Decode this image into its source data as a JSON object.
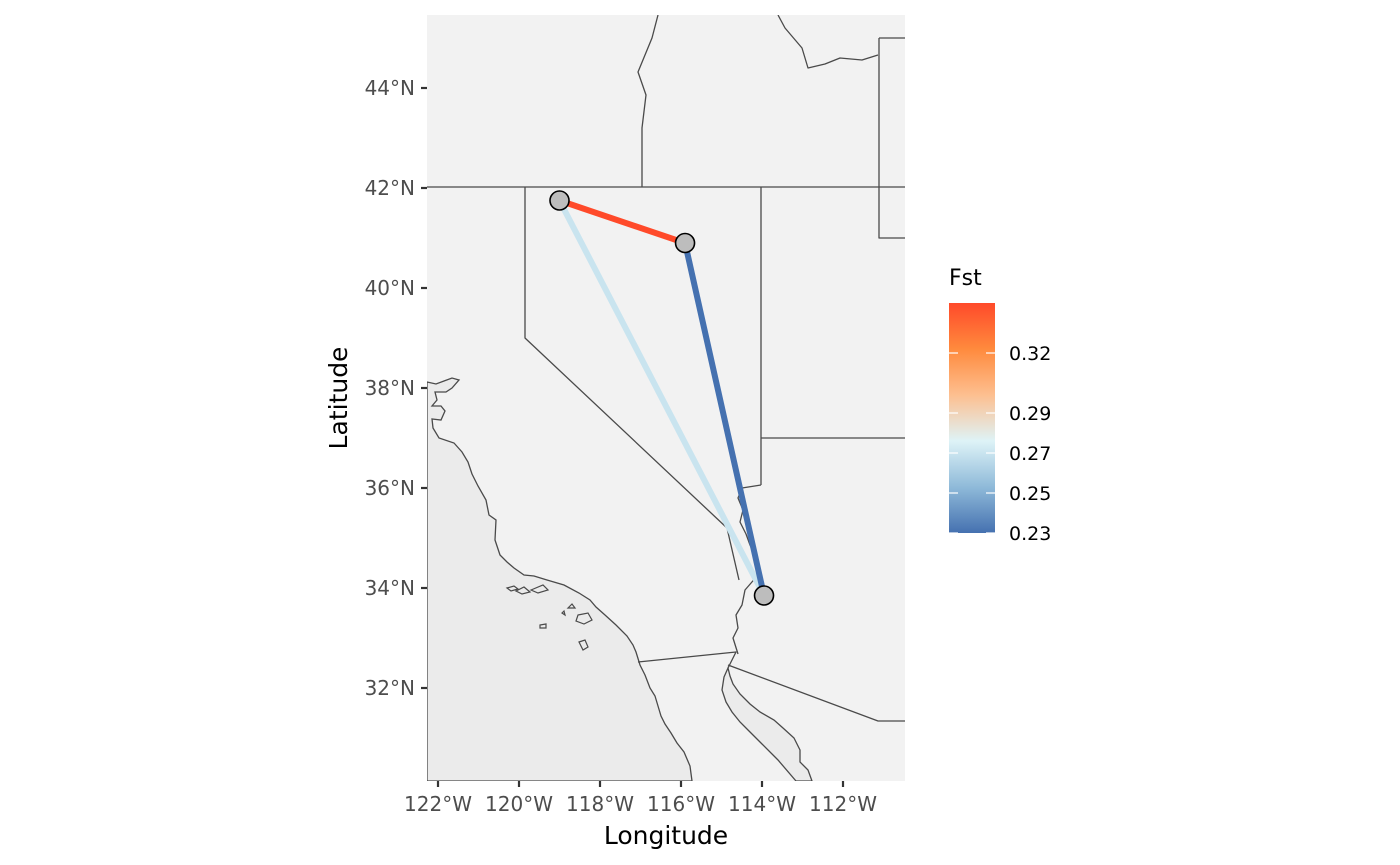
{
  "chart_data": {
    "type": "map",
    "xlabel": "Longitude",
    "ylabel": "Latitude",
    "xlim": [
      -122.6,
      -110.5
    ],
    "ylim": [
      30.2,
      45.5
    ],
    "x_ticks": [
      {
        "value": -122,
        "label": "122°W"
      },
      {
        "value": -120,
        "label": "120°W"
      },
      {
        "value": -118,
        "label": "118°W"
      },
      {
        "value": -116,
        "label": "116°W"
      },
      {
        "value": -114,
        "label": "114°W"
      },
      {
        "value": -112,
        "label": "112°W"
      }
    ],
    "y_ticks": [
      {
        "value": 32,
        "label": "32°N"
      },
      {
        "value": 34,
        "label": "34°N"
      },
      {
        "value": 36,
        "label": "36°N"
      },
      {
        "value": 38,
        "label": "38°N"
      },
      {
        "value": 40,
        "label": "40°N"
      },
      {
        "value": 42,
        "label": "42°N"
      },
      {
        "value": 44,
        "label": "44°N"
      }
    ],
    "sites": [
      {
        "lon": -119.0,
        "lat": 41.75
      },
      {
        "lon": -115.9,
        "lat": 40.9
      },
      {
        "lon": -113.95,
        "lat": 33.85
      }
    ],
    "edges": [
      {
        "from": 0,
        "to": 1,
        "fst": 0.345
      },
      {
        "from": 0,
        "to": 2,
        "fst": 0.27
      },
      {
        "from": 1,
        "to": 2,
        "fst": 0.23
      }
    ],
    "legend": {
      "title": "Fst",
      "min": 0.23,
      "max: ": null,
      "max": 0.345,
      "breaks": [
        {
          "value": 0.23,
          "label": "0.23"
        },
        {
          "value": 0.25,
          "label": "0.25"
        },
        {
          "value": 0.27,
          "label": "0.27"
        },
        {
          "value": 0.29,
          "label": "0.29"
        },
        {
          "value": 0.32,
          "label": "0.32"
        }
      ],
      "colors": [
        "#4571b0",
        "#8fbad9",
        "#def3f7",
        "#fdbf90",
        "#ff8a3d",
        "#ff4a2a"
      ]
    },
    "colors": {
      "panel": "#f2f2f2",
      "ocean": "#ebebeb",
      "point_fill": "#bdbdbd",
      "border": "#4a4a4a"
    }
  }
}
